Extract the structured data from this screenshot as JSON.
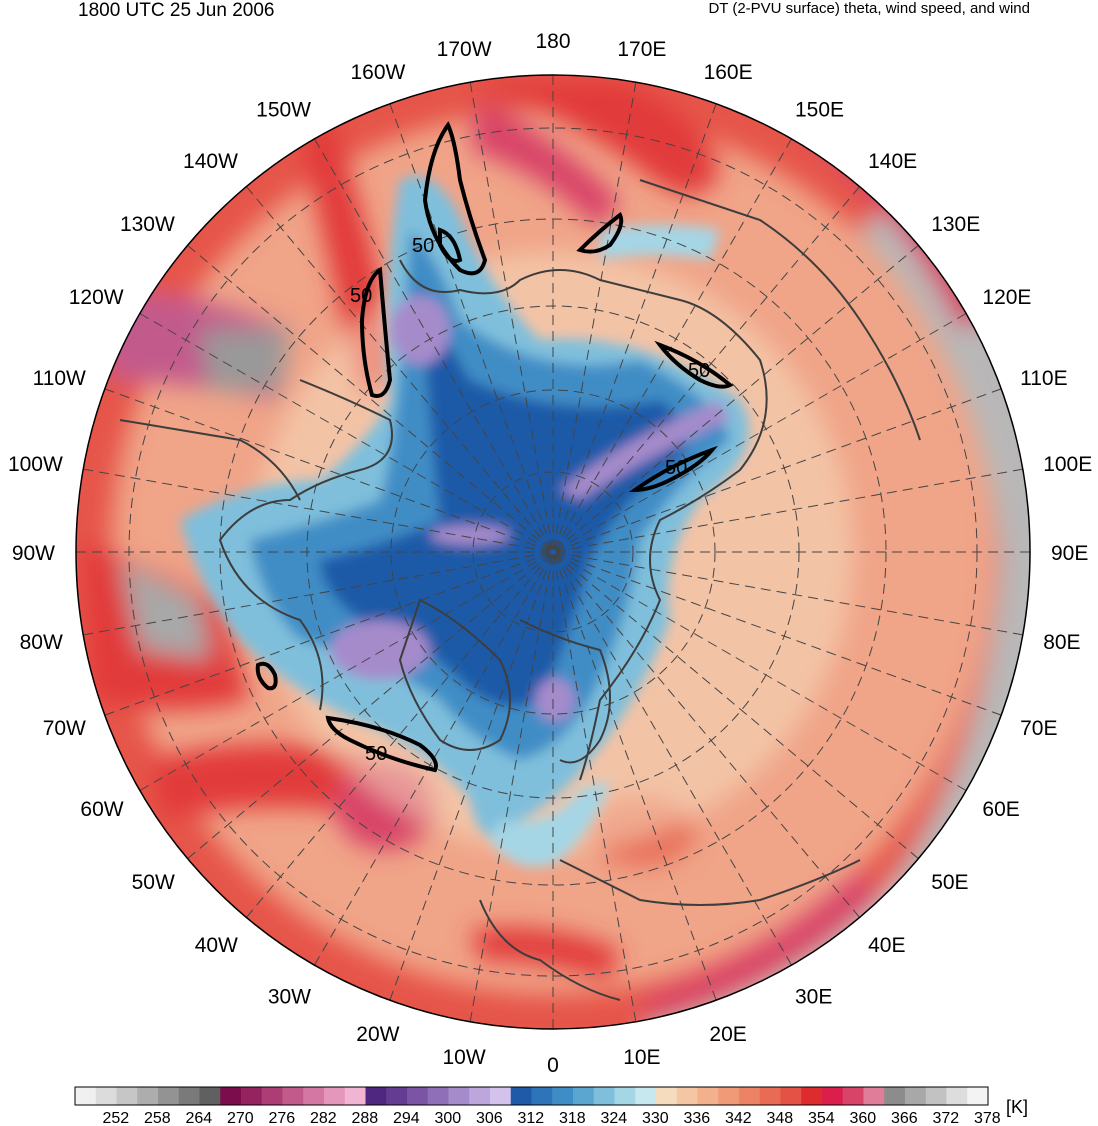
{
  "header": {
    "valid_time": "1800 UTC 25 Jun 2006",
    "field_description": "DT (2-PVU surface) theta, wind speed, and wind"
  },
  "map": {
    "projection": "north-polar-stereographic",
    "longitude_labels": [
      {
        "text": "180",
        "lon": 180
      },
      {
        "text": "170E",
        "lon": 170
      },
      {
        "text": "160E",
        "lon": 160
      },
      {
        "text": "150E",
        "lon": 150
      },
      {
        "text": "140E",
        "lon": 140
      },
      {
        "text": "130E",
        "lon": 130
      },
      {
        "text": "120E",
        "lon": 120
      },
      {
        "text": "110E",
        "lon": 110
      },
      {
        "text": "100E",
        "lon": 100
      },
      {
        "text": "90E",
        "lon": 90
      },
      {
        "text": "80E",
        "lon": 80
      },
      {
        "text": "70E",
        "lon": 70
      },
      {
        "text": "60E",
        "lon": 60
      },
      {
        "text": "50E",
        "lon": 50
      },
      {
        "text": "40E",
        "lon": 40
      },
      {
        "text": "30E",
        "lon": 30
      },
      {
        "text": "20E",
        "lon": 20
      },
      {
        "text": "10E",
        "lon": 10
      },
      {
        "text": "0",
        "lon": 0
      },
      {
        "text": "10W",
        "lon": -10
      },
      {
        "text": "20W",
        "lon": -20
      },
      {
        "text": "30W",
        "lon": -30
      },
      {
        "text": "40W",
        "lon": -40
      },
      {
        "text": "50W",
        "lon": -50
      },
      {
        "text": "60W",
        "lon": -60
      },
      {
        "text": "70W",
        "lon": -70
      },
      {
        "text": "80W",
        "lon": -80
      },
      {
        "text": "90W",
        "lon": -90
      },
      {
        "text": "100W",
        "lon": -100
      },
      {
        "text": "110W",
        "lon": -110
      },
      {
        "text": "120W",
        "lon": -120
      },
      {
        "text": "130W",
        "lon": -130
      },
      {
        "text": "140W",
        "lon": -140
      },
      {
        "text": "150W",
        "lon": -150
      },
      {
        "text": "160W",
        "lon": -160
      },
      {
        "text": "170W",
        "lon": -170
      }
    ],
    "wind_speed_contour_labels": [
      "50",
      "50",
      "50",
      "50",
      "50"
    ]
  },
  "colorbar": {
    "unit_label": "[K]",
    "tick_labels": [
      "252",
      "258",
      "264",
      "270",
      "276",
      "282",
      "288",
      "294",
      "300",
      "306",
      "312",
      "318",
      "324",
      "330",
      "336",
      "342",
      "348",
      "354",
      "360",
      "366",
      "372",
      "378"
    ],
    "colors": [
      "#f0f0f0",
      "#dcdcdc",
      "#c6c6c6",
      "#adadad",
      "#939393",
      "#7a7a7a",
      "#606060",
      "#7c0d4c",
      "#95235f",
      "#ad3d75",
      "#c25a8c",
      "#d477a3",
      "#e496bb",
      "#f2b4d3",
      "#502780",
      "#643d92",
      "#7a55a5",
      "#8f6fb8",
      "#a68bcb",
      "#bca6dc",
      "#d2c2ec",
      "#1e5aa8",
      "#2e74b8",
      "#3f8dc6",
      "#5aa6d0",
      "#7fbfdc",
      "#a4d6e6",
      "#c8e8ef",
      "#f6dcbe",
      "#f5c6a3",
      "#f3b08d",
      "#f09a78",
      "#ec8365",
      "#e86b55",
      "#e45245",
      "#de2c2e",
      "#dc1e4c",
      "#d84368",
      "#e07d98",
      "#8c8c8c",
      "#a8a8a8",
      "#c2c2c2",
      "#dddddd",
      "#f3f3f3"
    ]
  }
}
